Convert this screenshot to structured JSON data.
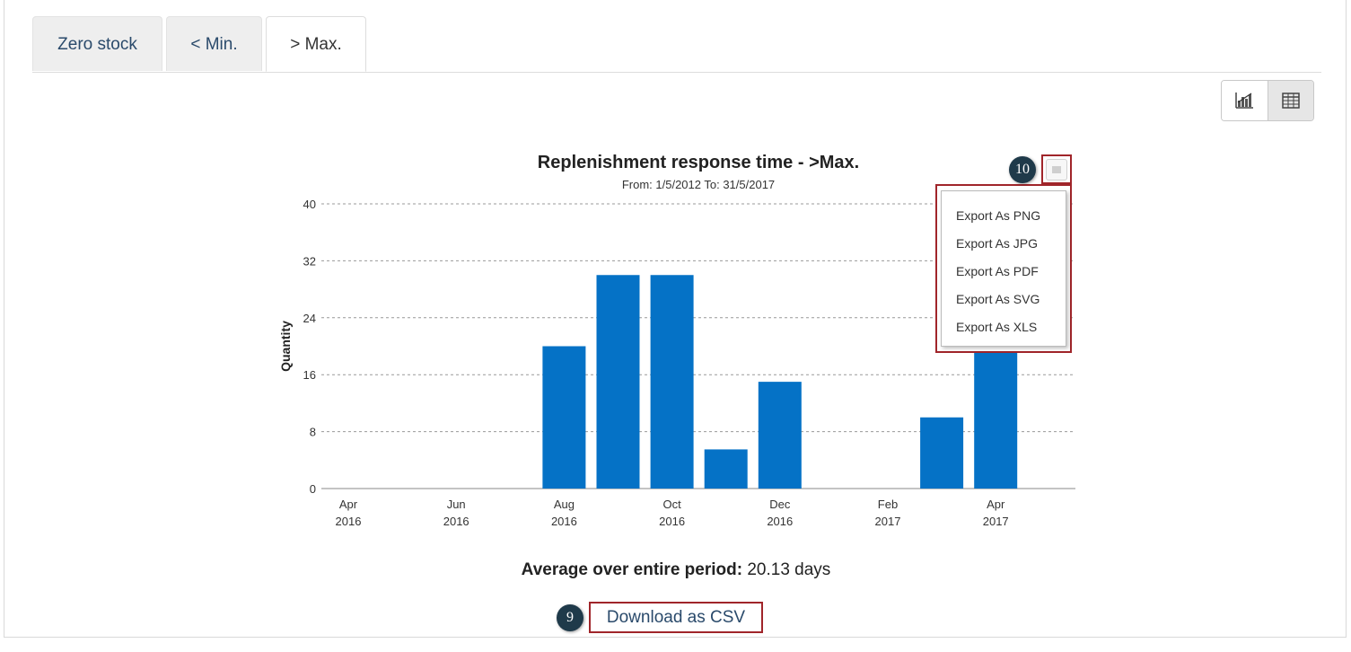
{
  "tabs": [
    {
      "label": "Zero stock",
      "active": false
    },
    {
      "label": "< Min.",
      "active": false
    },
    {
      "label": "> Max.",
      "active": true
    }
  ],
  "view_toggle": {
    "chart_icon": "bar-chart-icon",
    "table_icon": "table-grid-icon",
    "active": "chart"
  },
  "chart_data": {
    "type": "bar",
    "title": "Replenishment response time - >Max.",
    "subtitle": "From: 1/5/2012 To: 31/5/2017",
    "ylabel": "Quantity",
    "xlabel": "",
    "ylim": [
      0,
      40
    ],
    "yticks": [
      "0",
      "8",
      "16",
      "24",
      "32",
      "40"
    ],
    "grid": true,
    "color": "#0572c6",
    "x_ticks": [
      {
        "month": "Apr",
        "year": "2016"
      },
      {
        "month": "Jun",
        "year": "2016"
      },
      {
        "month": "Aug",
        "year": "2016"
      },
      {
        "month": "Oct",
        "year": "2016"
      },
      {
        "month": "Dec",
        "year": "2016"
      },
      {
        "month": "Feb",
        "year": "2017"
      },
      {
        "month": "Apr",
        "year": "2017"
      }
    ],
    "categories": [
      "Apr 2016",
      "May 2016",
      "Jun 2016",
      "Jul 2016",
      "Aug 2016",
      "Sep 2016",
      "Oct 2016",
      "Nov 2016",
      "Dec 2016",
      "Jan 2017",
      "Feb 2017",
      "Mar 2017",
      "Apr 2017"
    ],
    "values": [
      0,
      0,
      0,
      0,
      20,
      30,
      30,
      5.5,
      15,
      0,
      0,
      10,
      20
    ]
  },
  "export_menu": {
    "button_icon": "chart-menu-icon",
    "items": [
      "Export As PNG",
      "Export As JPG",
      "Export As PDF",
      "Export As SVG",
      "Export As XLS"
    ]
  },
  "summary": {
    "label": "Average over entire period:",
    "value": "20.13 days"
  },
  "download": {
    "label": "Download as CSV"
  },
  "callouts": {
    "download": "9",
    "export": "10"
  }
}
